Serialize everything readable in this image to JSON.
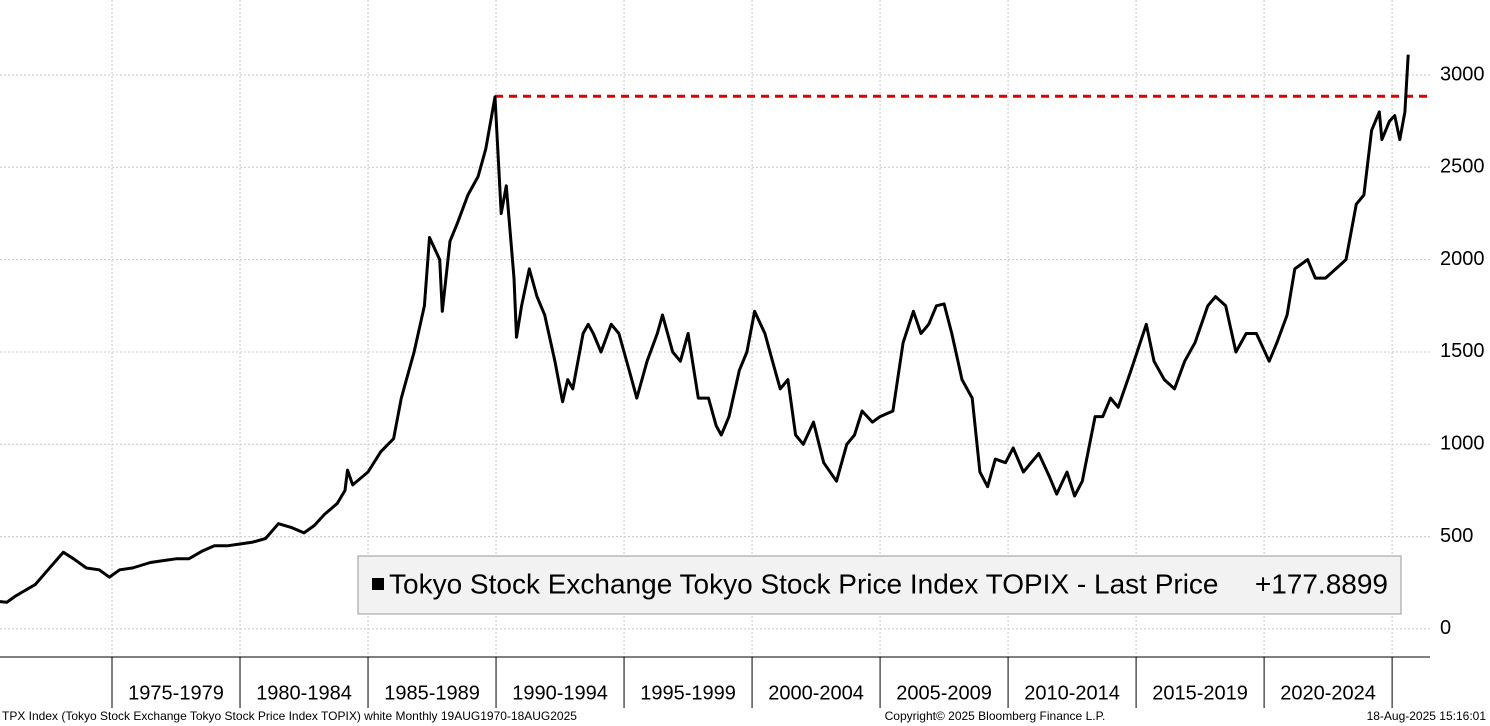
{
  "chart_data": {
    "type": "line",
    "series": [
      {
        "name": "Tokyo Stock Exchange Tokyo Stock Price Index TOPIX - Last Price",
        "color": "#000000",
        "x": [
          1970.6,
          1970.9,
          1971.2,
          1971.5,
          1972.0,
          1972.5,
          1973.0,
          1973.1,
          1973.5,
          1974.0,
          1974.5,
          1974.9,
          1975.3,
          1975.8,
          1976.5,
          1977.0,
          1977.5,
          1978.0,
          1978.5,
          1979.0,
          1979.5,
          1980.0,
          1980.5,
          1981.0,
          1981.5,
          1982.0,
          1982.5,
          1982.9,
          1983.3,
          1983.8,
          1984.1,
          1984.2,
          1984.4,
          1985.0,
          1985.5,
          1986.0,
          1986.3,
          1986.8,
          1987.2,
          1987.4,
          1987.8,
          1987.9,
          1988.2,
          1988.5,
          1988.9,
          1989.3,
          1989.6,
          1989.96,
          1990.2,
          1990.4,
          1990.7,
          1990.8,
          1991.0,
          1991.3,
          1991.6,
          1991.9,
          1992.3,
          1992.6,
          1992.8,
          1993.0,
          1993.4,
          1993.6,
          1993.8,
          1994.1,
          1994.5,
          1994.8,
          1995.2,
          1995.5,
          1995.9,
          1996.3,
          1996.5,
          1996.9,
          1997.2,
          1997.5,
          1997.9,
          1998.3,
          1998.6,
          1998.8,
          1999.1,
          1999.5,
          1999.8,
          2000.1,
          2000.5,
          2000.8,
          2001.1,
          2001.4,
          2001.7,
          2002.0,
          2002.4,
          2002.8,
          2003.3,
          2003.7,
          2004.0,
          2004.3,
          2004.7,
          2005.0,
          2005.5,
          2005.9,
          2006.3,
          2006.6,
          2006.9,
          2007.2,
          2007.5,
          2007.8,
          2008.2,
          2008.6,
          2008.9,
          2009.2,
          2009.5,
          2009.9,
          2010.2,
          2010.6,
          2010.9,
          2011.2,
          2011.6,
          2011.9,
          2012.3,
          2012.6,
          2012.9,
          2013.4,
          2013.7,
          2014.0,
          2014.3,
          2014.8,
          2015.4,
          2015.7,
          2016.1,
          2016.5,
          2016.9,
          2017.3,
          2017.8,
          2018.1,
          2018.5,
          2018.9,
          2019.3,
          2019.7,
          2020.2,
          2020.5,
          2020.9,
          2021.2,
          2021.7,
          2022.0,
          2022.4,
          2022.8,
          2023.2,
          2023.6,
          2023.9,
          2024.2,
          2024.5,
          2024.6,
          2024.9,
          2025.1,
          2025.3,
          2025.5,
          2025.63
        ],
        "values": [
          148,
          145,
          175,
          200,
          240,
          320,
          400,
          415,
          380,
          330,
          320,
          280,
          320,
          330,
          360,
          370,
          380,
          380,
          420,
          450,
          450,
          460,
          470,
          490,
          570,
          550,
          520,
          560,
          620,
          680,
          750,
          860,
          780,
          850,
          960,
          1030,
          1250,
          1500,
          1750,
          2120,
          2000,
          1720,
          2100,
          2200,
          2350,
          2450,
          2600,
          2881,
          2250,
          2400,
          1900,
          1580,
          1750,
          1950,
          1800,
          1700,
          1450,
          1230,
          1350,
          1300,
          1600,
          1650,
          1600,
          1500,
          1650,
          1600,
          1400,
          1250,
          1450,
          1600,
          1700,
          1500,
          1450,
          1600,
          1250,
          1250,
          1100,
          1050,
          1150,
          1400,
          1500,
          1720,
          1600,
          1450,
          1300,
          1350,
          1050,
          1000,
          1120,
          900,
          800,
          1000,
          1050,
          1180,
          1120,
          1150,
          1180,
          1550,
          1720,
          1600,
          1650,
          1750,
          1760,
          1600,
          1350,
          1250,
          850,
          770,
          920,
          900,
          980,
          850,
          900,
          950,
          830,
          730,
          850,
          720,
          800,
          1150,
          1150,
          1250,
          1200,
          1400,
          1650,
          1450,
          1350,
          1300,
          1450,
          1550,
          1750,
          1800,
          1750,
          1500,
          1600,
          1600,
          1450,
          1550,
          1700,
          1950,
          2000,
          1900,
          1900,
          1950,
          2000,
          2300,
          2350,
          2700,
          2800,
          2650,
          2750,
          2780,
          2650,
          2800,
          3110
        ]
      }
    ],
    "legend_value": "+177.8899",
    "reference_line": {
      "value": 2884.8,
      "x_start": 1989.96,
      "color": "#e00000"
    },
    "xlim": [
      1970.625,
      2026.48
    ],
    "ylim": [
      -152,
      3406
    ],
    "xticks": [
      1975,
      1980,
      1985,
      1990,
      1995,
      2000,
      2005,
      2010,
      2015,
      2020,
      2025
    ],
    "period_labels": [
      "1975-1979",
      "1980-1984",
      "1985-1989",
      "1990-1994",
      "1995-1999",
      "2000-2004",
      "2005-2009",
      "2010-2014",
      "2015-2019",
      "2020-2024"
    ],
    "yticks": [
      0,
      500,
      1000,
      1500,
      2000,
      2500,
      3000
    ],
    "grid": true,
    "footer_left": "TPX Index (Tokyo Stock Exchange Tokyo Stock Price Index TOPIX) white  Monthly 19AUG1970-18AUG2025",
    "footer_center": "Copyright© 2025 Bloomberg Finance L.P.",
    "footer_right": "18-Aug-2025 15:16:01"
  }
}
